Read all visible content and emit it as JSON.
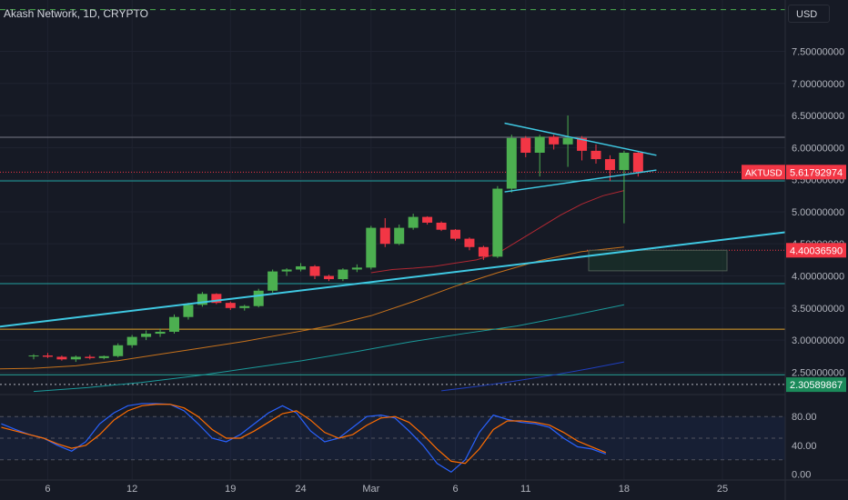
{
  "header": {
    "title": "Akash Network, 1D, CRYPTO",
    "currency": "USD"
  },
  "chart_data": {
    "type": "candlestick",
    "symbol": "AKTUSD",
    "price_axis": {
      "ylim": [
        2.18,
        8.3
      ],
      "ticks": [
        "7.50000000",
        "7.00000000",
        "6.50000000",
        "6.00000000",
        "5.50000000",
        "5.00000000",
        "4.50000000",
        "4.00000000",
        "3.50000000",
        "3.00000000",
        "2.50000000"
      ],
      "tick_values": [
        7.5,
        7.0,
        6.5,
        6.0,
        5.5,
        5.0,
        4.5,
        4.0,
        3.5,
        3.0,
        2.5
      ]
    },
    "x_axis": {
      "labels": [
        "6",
        "12",
        "19",
        "24",
        "Mar",
        "6",
        "11",
        "18",
        "25"
      ],
      "label_index": [
        1,
        7,
        14,
        19,
        24,
        30,
        35,
        42,
        49
      ]
    },
    "price_labels": [
      {
        "label": "AKTUSD",
        "value": "5.61792974",
        "price": 5.618,
        "color": "#f23645"
      },
      {
        "label": "",
        "value": "4.40036590",
        "price": 4.4,
        "color": "#f23645"
      },
      {
        "label": "",
        "value": "2.30589867",
        "price": 2.306,
        "color": "#1b8a5a"
      }
    ],
    "candles": [
      [
        2.75,
        2.78,
        2.7,
        2.76
      ],
      [
        2.76,
        2.8,
        2.72,
        2.74
      ],
      [
        2.74,
        2.76,
        2.68,
        2.7
      ],
      [
        2.7,
        2.76,
        2.66,
        2.74
      ],
      [
        2.74,
        2.77,
        2.7,
        2.72
      ],
      [
        2.72,
        2.76,
        2.7,
        2.75
      ],
      [
        2.75,
        2.95,
        2.73,
        2.92
      ],
      [
        2.92,
        3.08,
        2.88,
        3.05
      ],
      [
        3.05,
        3.15,
        3.0,
        3.1
      ],
      [
        3.1,
        3.18,
        3.05,
        3.13
      ],
      [
        3.13,
        3.4,
        3.1,
        3.36
      ],
      [
        3.36,
        3.58,
        3.32,
        3.55
      ],
      [
        3.55,
        3.75,
        3.52,
        3.72
      ],
      [
        3.72,
        3.73,
        3.56,
        3.58
      ],
      [
        3.58,
        3.6,
        3.47,
        3.5
      ],
      [
        3.5,
        3.55,
        3.46,
        3.53
      ],
      [
        3.53,
        3.8,
        3.51,
        3.77
      ],
      [
        3.77,
        4.1,
        3.74,
        4.07
      ],
      [
        4.07,
        4.12,
        4.0,
        4.1
      ],
      [
        4.1,
        4.2,
        4.07,
        4.15
      ],
      [
        4.15,
        4.17,
        3.95,
        4.0
      ],
      [
        4.0,
        4.02,
        3.92,
        3.95
      ],
      [
        3.95,
        4.12,
        3.92,
        4.1
      ],
      [
        4.1,
        4.18,
        4.06,
        4.13
      ],
      [
        4.13,
        4.78,
        4.1,
        4.75
      ],
      [
        4.75,
        4.9,
        4.45,
        4.5
      ],
      [
        4.5,
        4.8,
        4.48,
        4.75
      ],
      [
        4.75,
        4.97,
        4.72,
        4.92
      ],
      [
        4.92,
        4.93,
        4.8,
        4.83
      ],
      [
        4.83,
        4.85,
        4.7,
        4.72
      ],
      [
        4.72,
        4.73,
        4.55,
        4.58
      ],
      [
        4.58,
        4.6,
        4.4,
        4.45
      ],
      [
        4.45,
        4.47,
        4.25,
        4.3
      ],
      [
        4.3,
        5.4,
        4.28,
        5.36
      ],
      [
        5.36,
        6.2,
        5.3,
        6.15
      ],
      [
        6.15,
        6.18,
        5.85,
        5.92
      ],
      [
        5.92,
        6.2,
        5.55,
        6.17
      ],
      [
        6.17,
        6.2,
        5.97,
        6.05
      ],
      [
        6.05,
        6.5,
        5.7,
        6.15
      ],
      [
        6.15,
        6.18,
        5.8,
        5.95
      ],
      [
        5.95,
        6.05,
        5.75,
        5.82
      ],
      [
        5.82,
        5.88,
        5.48,
        5.65
      ],
      [
        5.65,
        5.95,
        4.82,
        5.92
      ],
      [
        5.92,
        5.94,
        5.55,
        5.62
      ]
    ],
    "sma_red": [
      4.05,
      4.1,
      4.12,
      4.15,
      4.2,
      4.25,
      4.35,
      4.55,
      4.75,
      4.95,
      5.12,
      5.25,
      5.33
    ],
    "sma_orange": [
      2.55,
      2.56,
      2.6,
      2.68,
      2.78,
      2.88,
      2.98,
      3.1,
      3.22,
      3.38,
      3.6,
      3.84,
      4.05,
      4.24,
      4.38,
      4.45
    ],
    "sma_teal": [
      2.2,
      2.26,
      2.34,
      2.44,
      2.56,
      2.68,
      2.82,
      2.97,
      3.1,
      3.22,
      3.38,
      3.55
    ],
    "sma_blue": [
      2.21,
      2.28,
      2.36,
      2.45,
      2.55,
      2.66
    ],
    "levels": [
      {
        "price": 6.16,
        "color": "#787b86"
      },
      {
        "price": 5.48,
        "color": "#22a1a1"
      },
      {
        "price": 3.88,
        "color": "#22a1a1"
      },
      {
        "price": 3.17,
        "color": "#e0a02a"
      },
      {
        "price": 2.46,
        "color": "#26a69a"
      },
      {
        "price": 2.31,
        "color": "#b2b5be"
      },
      {
        "price": 8.15,
        "color": "#4caf50"
      }
    ],
    "stoch": {
      "ylim": [
        -8,
        108
      ],
      "ticks": [
        "80.00",
        "40.00",
        "0.00"
      ],
      "tick_values": [
        80,
        40,
        0
      ],
      "band": [
        20,
        80
      ],
      "k": [
        70,
        62,
        55,
        50,
        40,
        32,
        45,
        70,
        85,
        95,
        98,
        98,
        97,
        88,
        70,
        50,
        45,
        55,
        70,
        85,
        95,
        85,
        60,
        45,
        50,
        65,
        80,
        82,
        78,
        60,
        40,
        15,
        3,
        20,
        58,
        82,
        76,
        72,
        70,
        65,
        50,
        38,
        35,
        28
      ],
      "d": [
        65,
        60,
        55,
        50,
        42,
        36,
        40,
        55,
        75,
        88,
        95,
        97,
        97,
        92,
        80,
        62,
        50,
        50,
        60,
        72,
        84,
        88,
        75,
        58,
        50,
        55,
        68,
        78,
        80,
        72,
        55,
        35,
        18,
        15,
        35,
        62,
        74,
        74,
        72,
        68,
        58,
        46,
        38,
        30
      ]
    },
    "colors": {
      "up": "#4caf50",
      "down": "#f23645",
      "trend": "#3fc9e3"
    }
  }
}
